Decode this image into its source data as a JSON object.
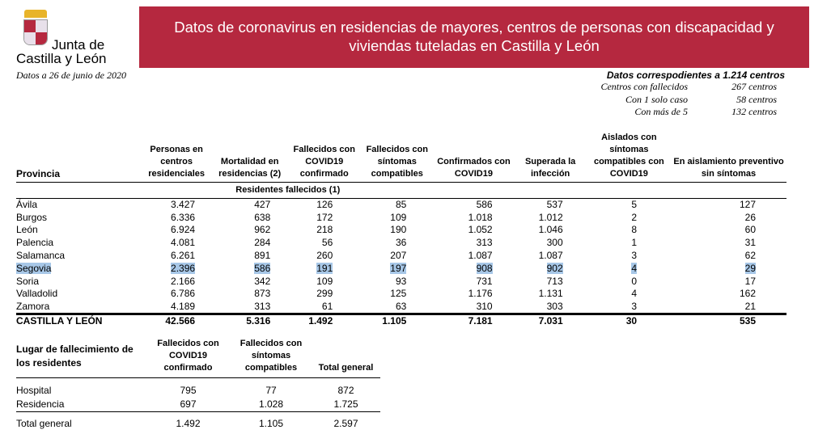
{
  "logo": {
    "line1": "Junta de",
    "line2": "Castilla y León"
  },
  "date": "Datos a 26 de junio de 2020",
  "banner": {
    "line1": "Datos de coronavirus en residencias de mayores, centros de personas con discapacidad y",
    "line2": "viviendas tuteladas en Castilla y León"
  },
  "info": {
    "heading": "Datos correspodientes a 1.214 centros",
    "rows": [
      {
        "label": "Centros con fallecidos",
        "value": "267 centros"
      },
      {
        "label": "Con 1 solo caso",
        "value": "58 centros"
      },
      {
        "label": "Con más de 5",
        "value": "132 centros"
      }
    ]
  },
  "main": {
    "headers": [
      "Provincia",
      "Personas en centros residenciales",
      "Mortalidad en residencias (2)",
      "Fallecidos con COVID19 confirmado",
      "Fallecidos con síntomas compatibles",
      "Confirmados con COVID19",
      "Superada la infección",
      "Aislados con síntomas compatibles con COVID19",
      "En aislamiento preventivo sin síntomas"
    ],
    "subheader": "Residentes fallecidos (1)",
    "rows": [
      [
        "Ávila",
        "3.427",
        "427",
        "126",
        "85",
        "586",
        "537",
        "5",
        "127"
      ],
      [
        "Burgos",
        "6.336",
        "638",
        "172",
        "109",
        "1.018",
        "1.012",
        "2",
        "26"
      ],
      [
        "León",
        "6.924",
        "962",
        "218",
        "190",
        "1.052",
        "1.046",
        "8",
        "60"
      ],
      [
        "Palencia",
        "4.081",
        "284",
        "56",
        "36",
        "313",
        "300",
        "1",
        "31"
      ],
      [
        "Salamanca",
        "6.261",
        "891",
        "260",
        "207",
        "1.087",
        "1.087",
        "3",
        "62"
      ],
      [
        "Segovia",
        "2.396",
        "586",
        "191",
        "197",
        "908",
        "902",
        "4",
        "29"
      ],
      [
        "Soria",
        "2.166",
        "342",
        "109",
        "93",
        "731",
        "713",
        "0",
        "17"
      ],
      [
        "Valladolid",
        "6.786",
        "873",
        "299",
        "125",
        "1.176",
        "1.131",
        "4",
        "162"
      ],
      [
        "Zamora",
        "4.189",
        "313",
        "61",
        "63",
        "310",
        "303",
        "3",
        "21"
      ]
    ],
    "total": [
      "CASTILLA Y LEÓN",
      "42.566",
      "5.316",
      "1.492",
      "1.105",
      "7.181",
      "7.031",
      "30",
      "535"
    ]
  },
  "lower": {
    "headers": [
      "Lugar de fallecimiento de los residentes",
      "Fallecidos con COVID19 confirmado",
      "Fallecidos con síntomas compatibles",
      "Total general"
    ],
    "rows": [
      [
        "Hospital",
        "795",
        "77",
        "872"
      ],
      [
        "Residencia",
        "697",
        "1.028",
        "1.725"
      ]
    ],
    "total": [
      "Total general",
      "1.492",
      "1.105",
      "2.597"
    ]
  }
}
